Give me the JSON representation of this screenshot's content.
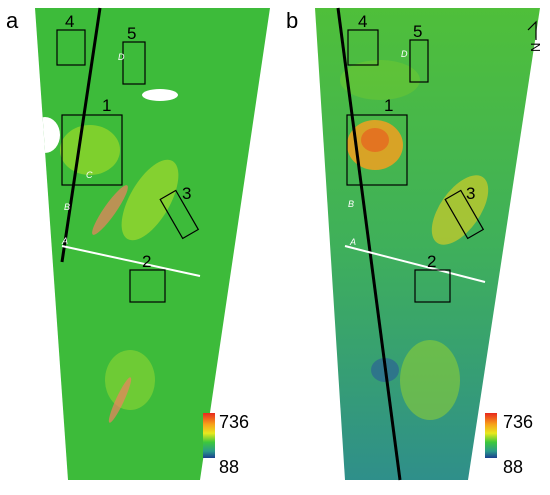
{
  "panels": [
    {
      "label": "a",
      "regions": [
        "4",
        "5",
        "1",
        "3",
        "2"
      ],
      "profiles": [
        "A",
        "B",
        "C",
        "D"
      ],
      "colorbar": {
        "max": 736,
        "min": 88
      }
    },
    {
      "label": "b",
      "regions": [
        "4",
        "5",
        "1",
        "3",
        "2"
      ],
      "profiles": [
        "A",
        "B",
        "D"
      ],
      "colorbar": {
        "max": 736,
        "min": 88
      }
    }
  ],
  "north": "N"
}
